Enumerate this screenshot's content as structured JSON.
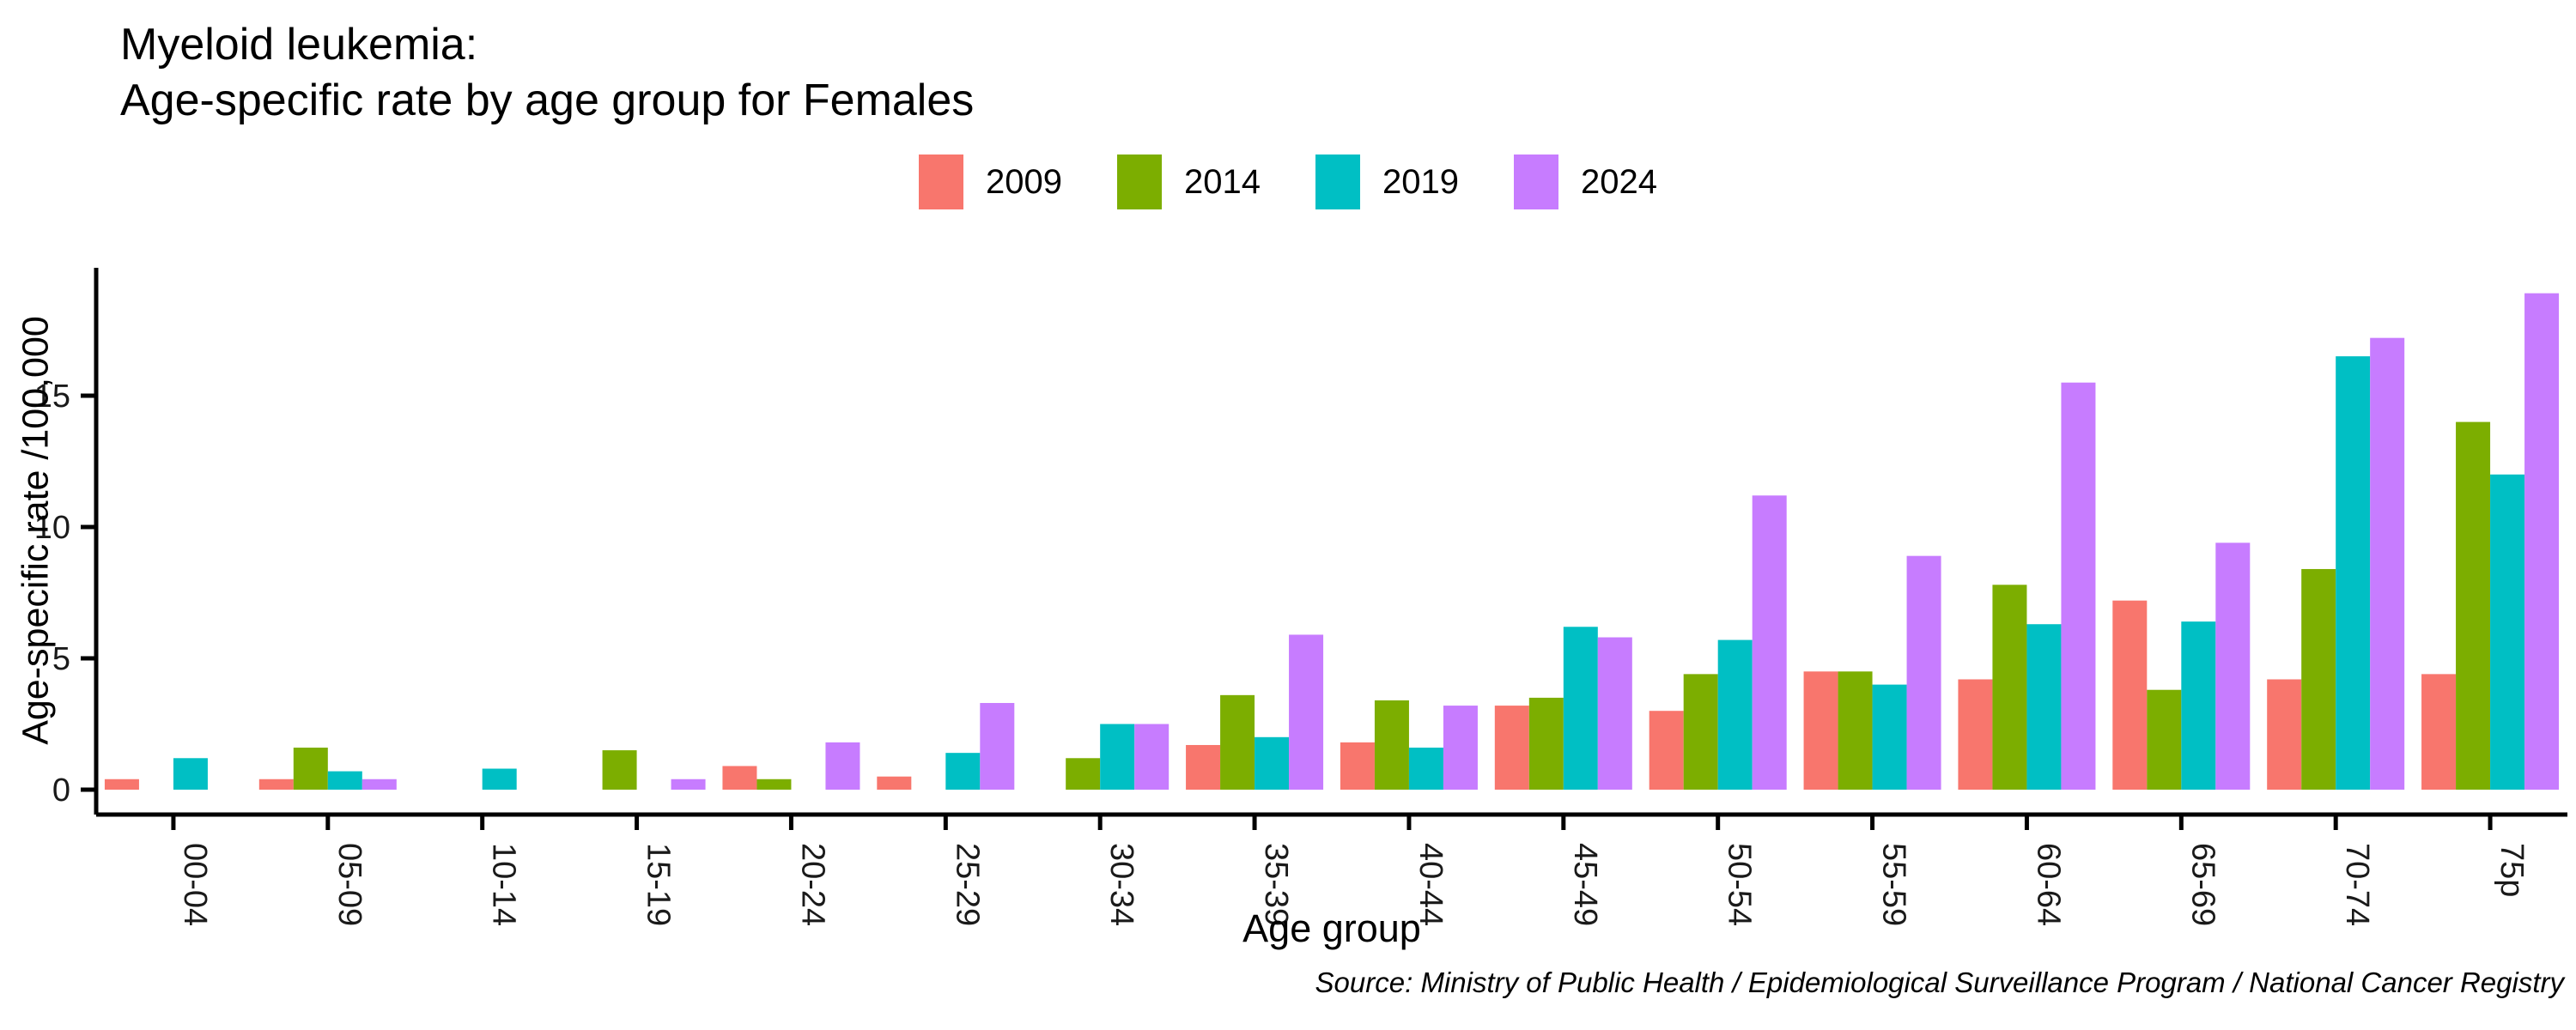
{
  "title": {
    "line1": "Myeloid leukemia:",
    "line2": "Age-specific rate by age group for Females"
  },
  "source_note": "Source: Ministry of Public Health / Epidemiological Surveillance Program / National Cancer Registry",
  "chart_data": {
    "type": "bar",
    "grouping": "dodged",
    "title": "Myeloid leukemia: Age-specific rate by age group for Females",
    "xlabel": "Age group",
    "ylabel": "Age-specific rate /100,000",
    "ylim": [
      0,
      20
    ],
    "y_ticks": [
      0,
      5,
      10,
      15
    ],
    "grid": false,
    "legend_position": "top-center",
    "axis_color": "#000000",
    "categories": [
      "00-04",
      "05-09",
      "10-14",
      "15-19",
      "20-24",
      "25-29",
      "30-34",
      "35-39",
      "40-44",
      "45-49",
      "50-54",
      "55-59",
      "60-64",
      "65-69",
      "70-74",
      "75p"
    ],
    "series": [
      {
        "name": "2009",
        "color": "#F8766D",
        "values": [
          0.4,
          0.4,
          0,
          0,
          0.9,
          0.5,
          0,
          1.7,
          1.8,
          3.2,
          3.0,
          4.5,
          4.2,
          7.2,
          4.2,
          4.4
        ]
      },
      {
        "name": "2014",
        "color": "#7CAE00",
        "values": [
          0,
          1.6,
          0,
          1.5,
          0.4,
          0,
          1.2,
          3.6,
          3.4,
          3.5,
          4.4,
          4.5,
          7.8,
          3.8,
          8.4,
          14.0
        ]
      },
      {
        "name": "2019",
        "color": "#00BFC4",
        "values": [
          1.2,
          0.7,
          0.8,
          0,
          0,
          1.4,
          2.5,
          2.0,
          1.6,
          6.2,
          5.7,
          4.0,
          6.3,
          6.4,
          16.5,
          12.0
        ]
      },
      {
        "name": "2024",
        "color": "#C77CFF",
        "values": [
          0,
          0.4,
          0,
          0.4,
          1.8,
          3.3,
          2.5,
          5.9,
          3.2,
          5.8,
          11.2,
          8.9,
          15.5,
          9.4,
          17.2,
          18.9
        ]
      }
    ]
  }
}
